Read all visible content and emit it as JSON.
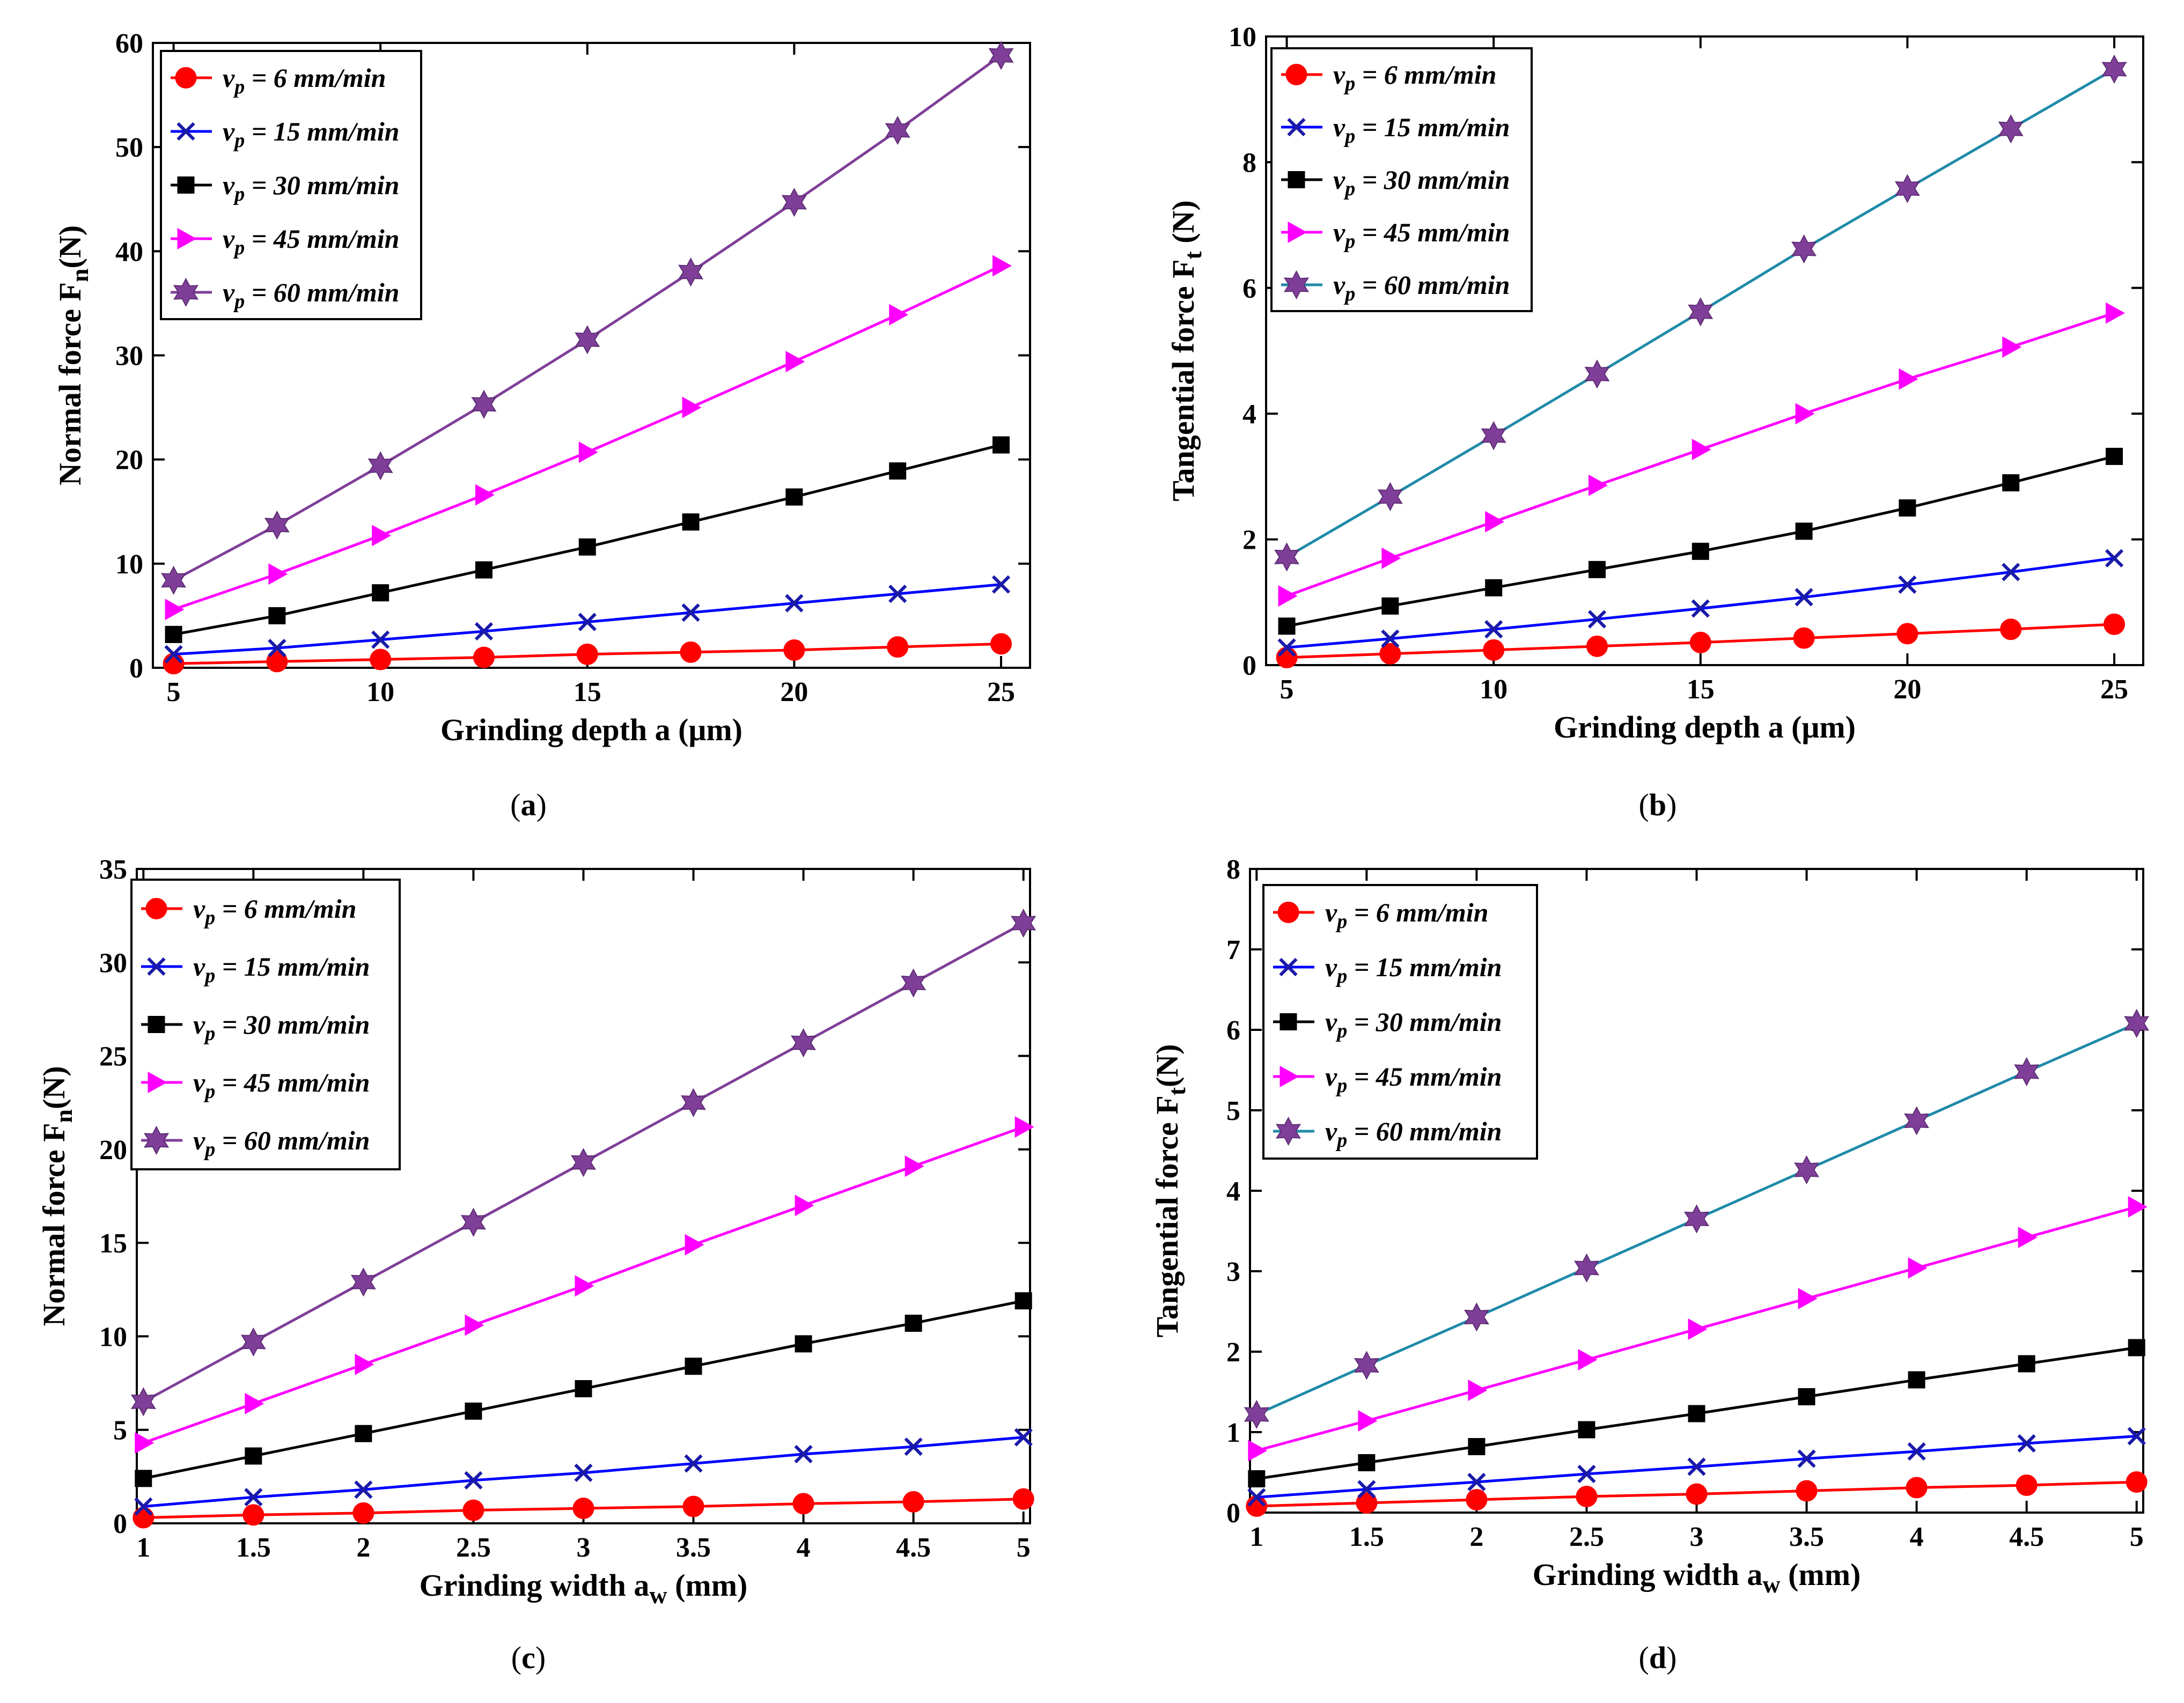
{
  "chart_data": [
    {
      "type": "line",
      "panel": "a",
      "caption": "(a)",
      "xlabel": "Grinding depth a (μm)",
      "ylabel": "Normal force Fn(N)",
      "xlim": [
        4.5,
        25.7
      ],
      "ylim": [
        0,
        60
      ],
      "xticks": [
        5,
        10,
        15,
        20,
        25
      ],
      "yticks": [
        0,
        10,
        20,
        30,
        40,
        50,
        60
      ],
      "x": [
        5,
        7.5,
        10,
        12.5,
        15,
        17.5,
        20,
        22.5,
        25
      ],
      "legend_position": "top-left",
      "series": [
        {
          "name": "vp = 6 mm/min",
          "color": "#ff0000",
          "marker": "circle",
          "values": [
            0.4,
            0.6,
            0.8,
            1.0,
            1.3,
            1.5,
            1.7,
            2.0,
            2.3
          ]
        },
        {
          "name": "vp = 15 mm/min",
          "color": "#1a1aa8",
          "line_color": "#0000ff",
          "marker": "x",
          "values": [
            1.3,
            1.9,
            2.7,
            3.5,
            4.4,
            5.3,
            6.2,
            7.1,
            8.0
          ]
        },
        {
          "name": "vp = 30 mm/min",
          "color": "#000000",
          "marker": "square",
          "values": [
            3.2,
            5.0,
            7.2,
            9.4,
            11.6,
            14.0,
            16.4,
            18.9,
            21.4
          ]
        },
        {
          "name": "vp = 45 mm/min",
          "color": "#ff00ff",
          "marker": "triangle-right",
          "values": [
            5.6,
            9.0,
            12.7,
            16.6,
            20.7,
            25.0,
            29.4,
            33.9,
            38.6
          ]
        },
        {
          "name": "vp = 60 mm/min",
          "color": "#7f3f98",
          "line_color": "#7f3f98",
          "marker": "hexagram",
          "values": [
            8.4,
            13.7,
            19.4,
            25.3,
            31.5,
            38.0,
            44.7,
            51.6,
            58.8
          ]
        }
      ]
    },
    {
      "type": "line",
      "panel": "b",
      "caption": "(b)",
      "xlabel": "Grinding depth a (μm)",
      "ylabel": "Tangential force Ft (N)",
      "xlim": [
        4.5,
        25.7
      ],
      "ylim": [
        0,
        10
      ],
      "xticks": [
        5,
        10,
        15,
        20,
        25
      ],
      "yticks": [
        0,
        2,
        4,
        6,
        8,
        10
      ],
      "x": [
        5,
        7.5,
        10,
        12.5,
        15,
        17.5,
        20,
        22.5,
        25
      ],
      "legend_position": "top-left",
      "series": [
        {
          "name": "vp = 6 mm/min",
          "color": "#ff0000",
          "marker": "circle",
          "values": [
            0.12,
            0.18,
            0.24,
            0.3,
            0.36,
            0.43,
            0.5,
            0.57,
            0.65
          ]
        },
        {
          "name": "vp = 15 mm/min",
          "color": "#1a1aa8",
          "line_color": "#0000ff",
          "marker": "x",
          "values": [
            0.28,
            0.42,
            0.57,
            0.73,
            0.9,
            1.08,
            1.28,
            1.48,
            1.7
          ]
        },
        {
          "name": "vp = 30 mm/min",
          "color": "#000000",
          "marker": "square",
          "values": [
            0.62,
            0.94,
            1.23,
            1.52,
            1.81,
            2.13,
            2.5,
            2.9,
            3.32
          ]
        },
        {
          "name": "vp = 45 mm/min",
          "color": "#ff00ff",
          "marker": "triangle-right",
          "values": [
            1.1,
            1.7,
            2.28,
            2.86,
            3.43,
            4.0,
            4.55,
            5.06,
            5.6
          ]
        },
        {
          "name": "vp = 60 mm/min",
          "color": "#7f3f98",
          "line_color": "#1f8aa8",
          "marker": "hexagram",
          "values": [
            1.72,
            2.68,
            3.65,
            4.63,
            5.62,
            6.62,
            7.58,
            8.53,
            9.48
          ]
        }
      ]
    },
    {
      "type": "line",
      "panel": "c",
      "caption": "(c)",
      "xlabel": "Grinding width aw (mm)",
      "ylabel": "Normal force Fn(N)",
      "xlim": [
        0.97,
        5.03
      ],
      "ylim": [
        0,
        35
      ],
      "xticks": [
        1,
        1.5,
        2,
        2.5,
        3,
        3.5,
        4,
        4.5,
        5
      ],
      "yticks": [
        0,
        5,
        10,
        15,
        20,
        25,
        30,
        35
      ],
      "x": [
        1,
        1.5,
        2,
        2.5,
        3,
        3.5,
        4,
        4.5,
        5
      ],
      "legend_position": "top-left",
      "series": [
        {
          "name": "vp = 6 mm/min",
          "color": "#ff0000",
          "marker": "circle",
          "values": [
            0.3,
            0.45,
            0.55,
            0.7,
            0.8,
            0.9,
            1.05,
            1.15,
            1.3
          ]
        },
        {
          "name": "vp = 15 mm/min",
          "color": "#1a1aa8",
          "line_color": "#0000ff",
          "marker": "x",
          "values": [
            0.9,
            1.4,
            1.8,
            2.3,
            2.7,
            3.2,
            3.7,
            4.1,
            4.6
          ]
        },
        {
          "name": "vp = 30 mm/min",
          "color": "#000000",
          "marker": "square",
          "values": [
            2.4,
            3.6,
            4.8,
            6.0,
            7.2,
            8.4,
            9.6,
            10.7,
            11.9
          ]
        },
        {
          "name": "vp = 45 mm/min",
          "color": "#ff00ff",
          "marker": "triangle-right",
          "values": [
            4.3,
            6.4,
            8.5,
            10.6,
            12.7,
            14.9,
            17.0,
            19.1,
            21.2
          ]
        },
        {
          "name": "vp = 60 mm/min",
          "color": "#7f3f98",
          "line_color": "#7f3f98",
          "marker": "hexagram",
          "values": [
            6.5,
            9.7,
            12.9,
            16.1,
            19.3,
            22.5,
            25.7,
            28.9,
            32.1
          ]
        }
      ]
    },
    {
      "type": "line",
      "panel": "d",
      "caption": "(d)",
      "xlabel": "Grinding width aw (mm)",
      "ylabel": "Tangential force Ft(N)",
      "xlim": [
        0.97,
        5.03
      ],
      "ylim": [
        0,
        8
      ],
      "xticks": [
        1,
        1.5,
        2,
        2.5,
        3,
        3.5,
        4,
        4.5,
        5
      ],
      "yticks": [
        0,
        1,
        2,
        3,
        4,
        5,
        6,
        7,
        8
      ],
      "x": [
        1,
        1.5,
        2,
        2.5,
        3,
        3.5,
        4,
        4.5,
        5
      ],
      "legend_position": "top-left",
      "series": [
        {
          "name": "vp = 6 mm/min",
          "color": "#ff0000",
          "marker": "circle",
          "values": [
            0.08,
            0.12,
            0.16,
            0.2,
            0.23,
            0.27,
            0.31,
            0.34,
            0.38
          ]
        },
        {
          "name": "vp = 15 mm/min",
          "color": "#1a1aa8",
          "line_color": "#0000ff",
          "marker": "x",
          "values": [
            0.19,
            0.29,
            0.38,
            0.48,
            0.57,
            0.67,
            0.76,
            0.86,
            0.95
          ]
        },
        {
          "name": "vp = 30 mm/min",
          "color": "#000000",
          "marker": "square",
          "values": [
            0.42,
            0.62,
            0.82,
            1.03,
            1.23,
            1.44,
            1.65,
            1.85,
            2.05
          ]
        },
        {
          "name": "vp = 45 mm/min",
          "color": "#ff00ff",
          "marker": "triangle-right",
          "values": [
            0.77,
            1.14,
            1.52,
            1.9,
            2.28,
            2.66,
            3.04,
            3.42,
            3.8
          ]
        },
        {
          "name": "vp = 60 mm/min",
          "color": "#7f3f98",
          "line_color": "#1f8aa8",
          "marker": "hexagram",
          "values": [
            1.22,
            1.83,
            2.43,
            3.04,
            3.65,
            4.26,
            4.87,
            5.48,
            6.08
          ]
        }
      ]
    }
  ]
}
